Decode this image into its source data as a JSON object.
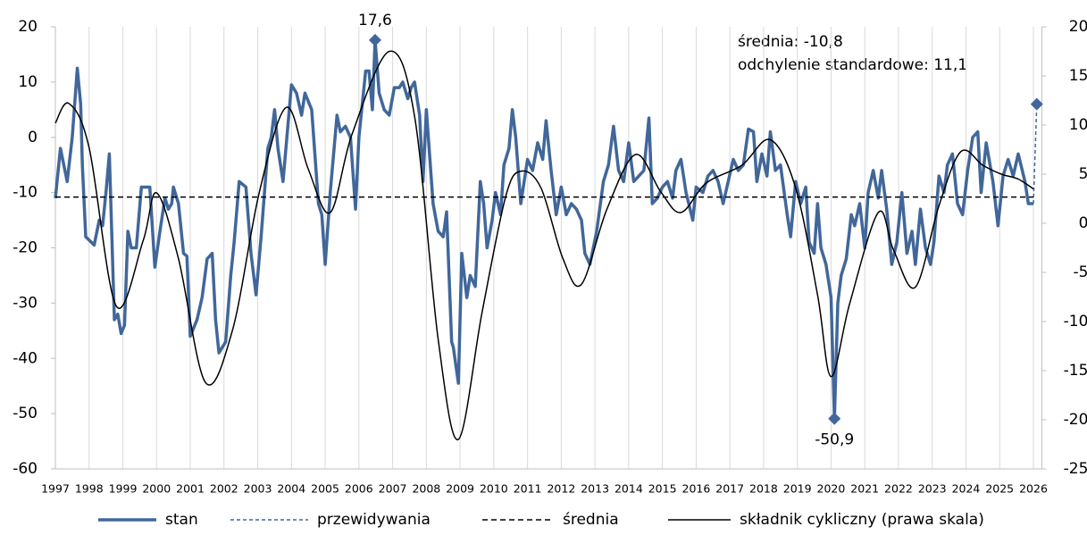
{
  "chart_data": {
    "type": "line",
    "xlim": [
      1997,
      2026.25
    ],
    "xticks": [
      1997,
      1998,
      1999,
      2000,
      2001,
      2002,
      2003,
      2004,
      2005,
      2006,
      2007,
      2008,
      2009,
      2010,
      2011,
      2012,
      2013,
      2014,
      2015,
      2016,
      2017,
      2018,
      2019,
      2020,
      2021,
      2022,
      2023,
      2024,
      2025,
      2026
    ],
    "ylim": [
      -60,
      20
    ],
    "yticks": [
      20,
      10,
      0,
      -10,
      -20,
      -30,
      -40,
      -50,
      -60
    ],
    "y2lim": [
      -25,
      20
    ],
    "y2ticks": [
      20,
      15,
      10,
      5,
      0,
      -5,
      -10,
      -15,
      -20,
      -25
    ],
    "grid": "x",
    "legend": "bottom",
    "stats": [
      "średnia: -10,8",
      "odchylenie standardowe: 11,1"
    ],
    "annotations": [
      {
        "x": 2006.48,
        "value": 17.6,
        "label": "17,6",
        "position": "above"
      },
      {
        "x": 2020.1,
        "value": -50.9,
        "label": "-50,9",
        "position": "below"
      }
    ],
    "series": [
      {
        "name": "stan",
        "color": "#41679a",
        "width": 3.5,
        "dash": "none",
        "x": [
          1997,
          1997.15,
          1997.35,
          1997.5,
          1997.65,
          1997.75,
          1997.8,
          1997.9,
          1998.15,
          1998.3,
          1998.4,
          1998.5,
          1998.6,
          1998.75,
          1998.85,
          1998.95,
          1999.05,
          1999.15,
          1999.25,
          1999.4,
          1999.55,
          1999.8,
          1999.95,
          2000.1,
          2000.25,
          2000.35,
          2000.45,
          2000.5,
          2000.65,
          2000.8,
          2000.9,
          2001,
          2001.2,
          2001.35,
          2001.5,
          2001.65,
          2001.75,
          2001.85,
          2002.05,
          2002.2,
          2002.3,
          2002.45,
          2002.65,
          2002.8,
          2002.95,
          2003.1,
          2003.3,
          2003.4,
          2003.5,
          2003.6,
          2003.75,
          2004,
          2004.15,
          2004.3,
          2004.4,
          2004.6,
          2004.8,
          2004.9,
          2005,
          2005.15,
          2005.35,
          2005.45,
          2005.6,
          2005.75,
          2005.9,
          2006,
          2006.2,
          2006.3,
          2006.4,
          2006.48,
          2006.6,
          2006.75,
          2006.9,
          2007.05,
          2007.2,
          2007.3,
          2007.45,
          2007.55,
          2007.65,
          2007.8,
          2007.9,
          2008,
          2008.2,
          2008.35,
          2008.5,
          2008.6,
          2008.75,
          2008.8,
          2008.95,
          2009.05,
          2009.2,
          2009.3,
          2009.45,
          2009.6,
          2009.7,
          2009.8,
          2009.95,
          2010.05,
          2010.2,
          2010.3,
          2010.45,
          2010.55,
          2010.65,
          2010.8,
          2011,
          2011.15,
          2011.3,
          2011.45,
          2011.55,
          2011.7,
          2011.85,
          2012,
          2012.15,
          2012.3,
          2012.45,
          2012.6,
          2012.7,
          2012.85,
          2013.05,
          2013.25,
          2013.4,
          2013.55,
          2013.7,
          2013.85,
          2014,
          2014.15,
          2014.3,
          2014.45,
          2014.6,
          2014.7,
          2014.85,
          2015,
          2015.15,
          2015.3,
          2015.4,
          2015.55,
          2015.7,
          2015.9,
          2016,
          2016.2,
          2016.35,
          2016.5,
          2016.65,
          2016.8,
          2016.95,
          2017.1,
          2017.25,
          2017.4,
          2017.55,
          2017.7,
          2017.8,
          2017.95,
          2018.1,
          2018.2,
          2018.35,
          2018.5,
          2018.7,
          2018.8,
          2018.95,
          2019.1,
          2019.25,
          2019.35,
          2019.5,
          2019.6,
          2019.7,
          2019.85,
          2020,
          2020.1,
          2020.2,
          2020.3,
          2020.45,
          2020.6,
          2020.7,
          2020.85,
          2021,
          2021.1,
          2021.25,
          2021.4,
          2021.5,
          2021.65,
          2021.8,
          2021.95,
          2022.1,
          2022.25,
          2022.4,
          2022.5,
          2022.65,
          2022.8,
          2022.95,
          2023.05,
          2023.2,
          2023.35,
          2023.45,
          2023.6,
          2023.75,
          2023.9,
          2024.05,
          2024.2,
          2024.35,
          2024.45,
          2024.6,
          2024.8,
          2024.95,
          2025.1,
          2025.25,
          2025.4,
          2025.55,
          2025.75,
          2025.85,
          2026
        ],
        "values": [
          -11,
          -2,
          -8,
          0,
          12.5,
          6,
          -5,
          -18,
          -19.5,
          -15,
          -16,
          -10,
          -3,
          -33,
          -32,
          -35.5,
          -34,
          -17,
          -20,
          -20,
          -9,
          -9,
          -23.5,
          -17,
          -11,
          -13,
          -12,
          -9,
          -12,
          -21,
          -21.5,
          -36,
          -33,
          -29,
          -22,
          -21,
          -33,
          -39,
          -37,
          -25,
          -19,
          -8,
          -9,
          -21,
          -28.5,
          -18,
          -2,
          0,
          5,
          -2,
          -8,
          9.5,
          8,
          4,
          8,
          5,
          -12,
          -14,
          -23,
          -10,
          4,
          1,
          2,
          0,
          -13,
          0,
          12,
          12,
          5,
          17.6,
          8,
          5,
          4,
          9,
          9,
          10,
          7,
          9,
          10,
          4,
          -8,
          5,
          -12,
          -17,
          -18,
          -13.5,
          -37,
          -38,
          -44.5,
          -21,
          -29,
          -25,
          -27,
          -8,
          -12,
          -20,
          -15,
          -10,
          -14,
          -5,
          -2,
          5,
          0,
          -12,
          -4,
          -6,
          -1,
          -4,
          3,
          -6,
          -14,
          -9,
          -14,
          -12,
          -13,
          -15,
          -21,
          -23,
          -17,
          -8,
          -5,
          2,
          -6,
          -8,
          -1,
          -8,
          -7,
          -6,
          3.5,
          -12,
          -11,
          -9,
          -8,
          -11,
          -6,
          -4,
          -10,
          -15,
          -9,
          -10,
          -7,
          -6,
          -8,
          -12,
          -8,
          -4,
          -6,
          -5,
          1.5,
          1,
          -8,
          -3,
          -7,
          1,
          -6,
          -5,
          -14,
          -18,
          -8,
          -12,
          -9,
          -19,
          -21,
          -12,
          -20,
          -23,
          -29,
          -50.9,
          -30,
          -25,
          -22,
          -14,
          -16,
          -12,
          -20,
          -10,
          -6,
          -11,
          -6,
          -13,
          -23,
          -19,
          -10,
          -21,
          -17,
          -23,
          -13,
          -20,
          -23,
          -19,
          -7,
          -10,
          -5,
          -3,
          -12,
          -14,
          -6,
          0,
          1,
          -10,
          -1,
          -8,
          -16,
          -7,
          -4,
          -7,
          -3,
          -8,
          -12,
          -12
        ]
      },
      {
        "name": "przewidywania",
        "color": "#41679a",
        "width": 1.5,
        "dash": "4 3",
        "end_marker": "diamond",
        "x": [
          2026,
          2026.1
        ],
        "values": [
          -12,
          6
        ]
      },
      {
        "name": "średnia",
        "color": "#000000",
        "width": 1.5,
        "dash": "6 4",
        "x": [
          1997,
          2026
        ],
        "values": [
          -10.8,
          -10.8
        ]
      },
      {
        "name": "składnik cykliczny (prawa skala)",
        "color": "#000000",
        "width": 1.5,
        "dash": "none",
        "axis": "y2",
        "smooth": true,
        "x": [
          1997,
          1997.4,
          1998,
          1998.8,
          1999.6,
          2000,
          2000.65,
          2001.45,
          2002.25,
          2003.05,
          2003.85,
          2004.5,
          2005.15,
          2005.8,
          2006.9,
          2007.65,
          2008.35,
          2008.95,
          2009.65,
          2010.35,
          2010.8,
          2011.4,
          2012.05,
          2012.6,
          2013.35,
          2014.2,
          2014.95,
          2015.55,
          2016.3,
          2017.35,
          2018.2,
          2018.95,
          2019.6,
          2020,
          2020.55,
          2021.4,
          2021.85,
          2022.5,
          2023.2,
          2023.85,
          2024.5,
          2025.05,
          2025.55,
          2026
        ],
        "values": [
          10.2,
          12.2,
          7.7,
          -8.4,
          -1.8,
          3.1,
          -3.6,
          -16.2,
          -10.9,
          3.2,
          11.8,
          5.5,
          1.1,
          9.1,
          17.5,
          10.9,
          -11.8,
          -22,
          -9.1,
          2.7,
          5.3,
          3.6,
          -3.6,
          -6.2,
          1.4,
          7,
          3.2,
          1.1,
          4.1,
          5.9,
          8.5,
          3.6,
          -7.3,
          -15.6,
          -8.2,
          1.1,
          -2.7,
          -6.5,
          1.8,
          7.3,
          5.9,
          5,
          4.5,
          3.5
        ]
      }
    ]
  }
}
